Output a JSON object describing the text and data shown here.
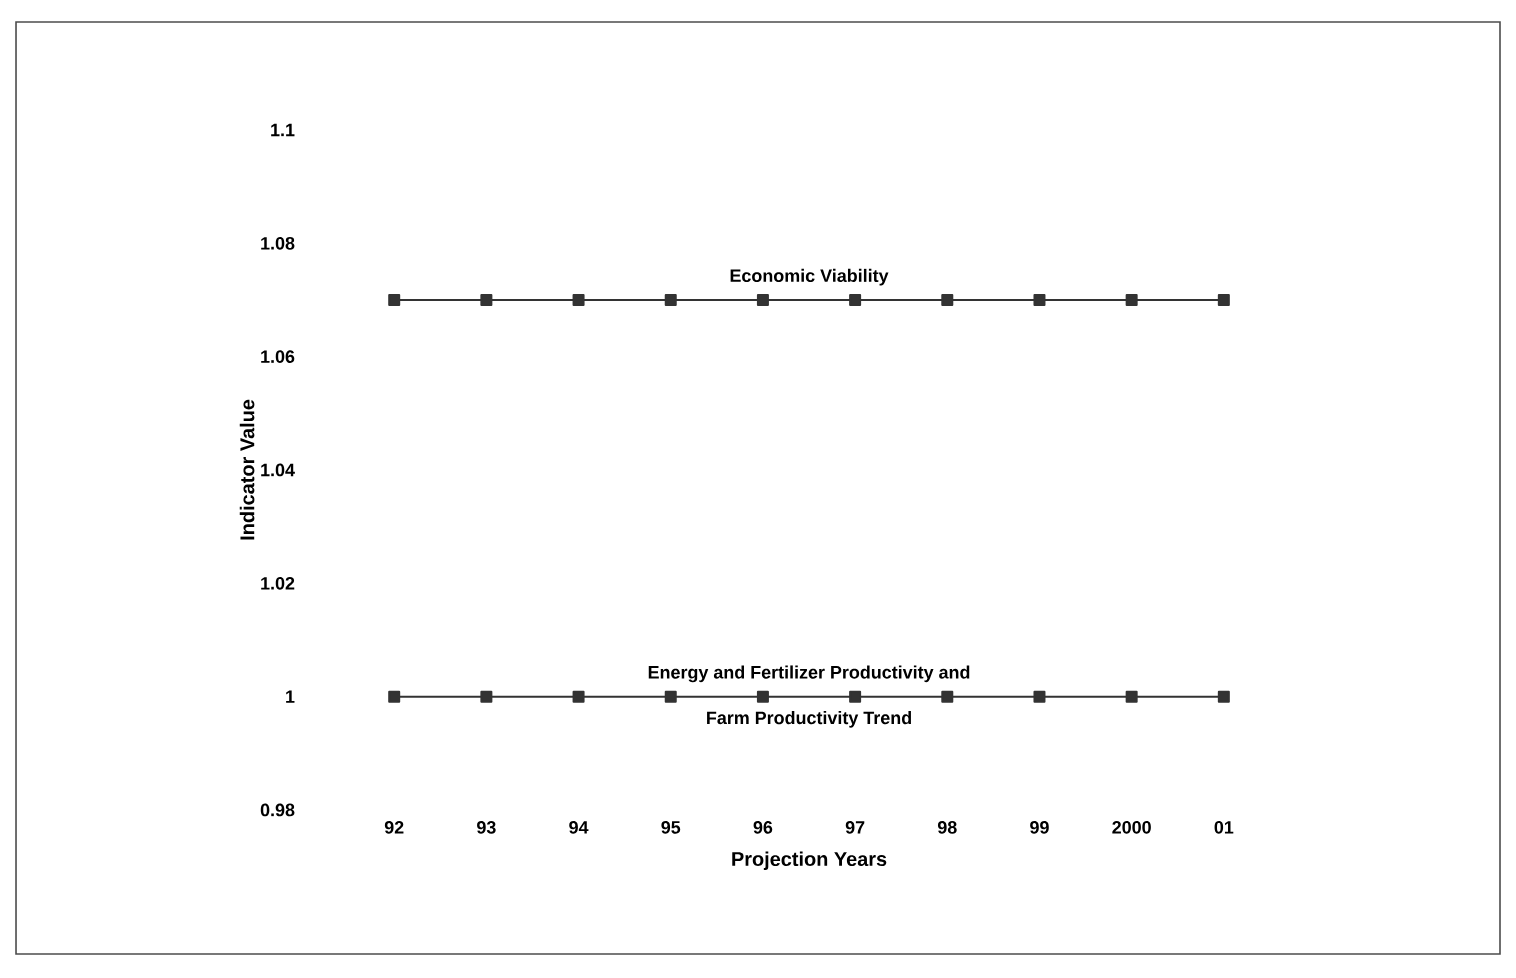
{
  "chart_data": {
    "type": "line",
    "xlabel": "Projection Years",
    "ylabel": "Indicator Value",
    "categories": [
      "92",
      "93",
      "94",
      "95",
      "96",
      "97",
      "98",
      "99",
      "2000",
      "01"
    ],
    "series": [
      {
        "color": "#333333",
        "values": [
          1.07,
          1.07,
          1.07,
          1.07,
          1.07,
          1.07,
          1.07,
          1.07,
          1.07,
          1.07
        ]
      },
      {
        "color": "#333333",
        "values": [
          1,
          1,
          1,
          1,
          1,
          1,
          1,
          1,
          1,
          1
        ]
      }
    ],
    "annotations": [
      {
        "text": "Economic Viability",
        "x": "96",
        "y": 1.07
      },
      {
        "text": "Energy and Fertilizer Productivity and",
        "x": "96",
        "y": 1
      },
      {
        "text": "Farm Productivity Trend",
        "x": "96",
        "y": 1
      }
    ],
    "ylim": [
      0.98,
      1.1
    ],
    "yticks": [
      0.98,
      1,
      1.02,
      1.04,
      1.06,
      1.08,
      1.1
    ],
    "marker": "square",
    "line_style": "solid"
  }
}
